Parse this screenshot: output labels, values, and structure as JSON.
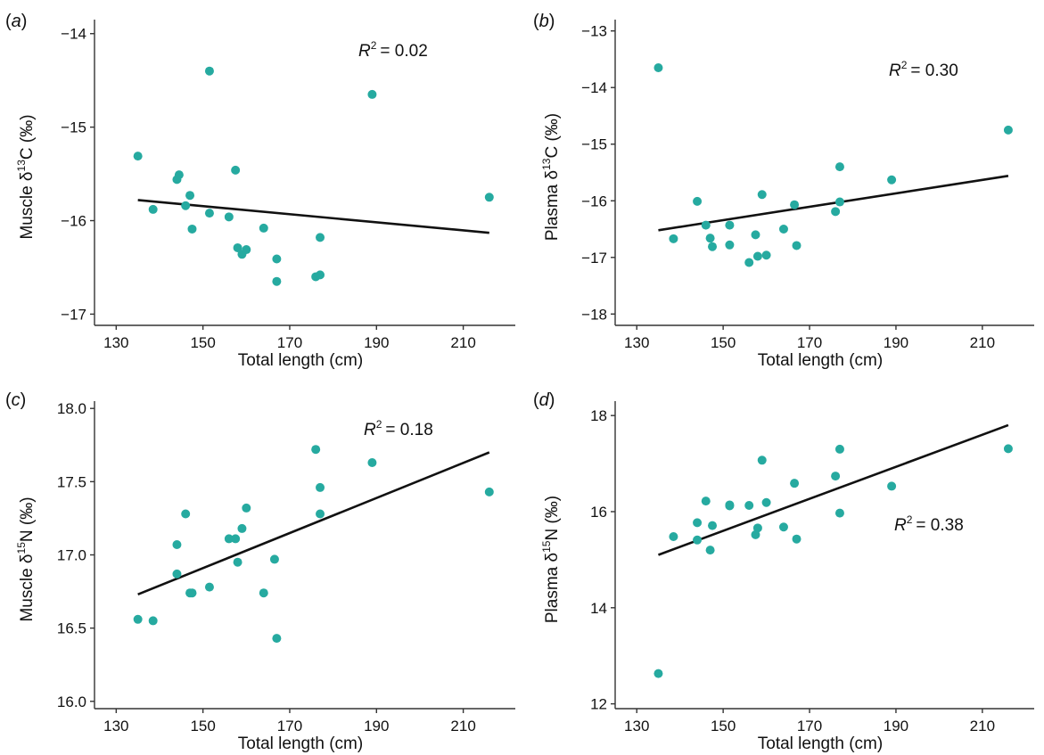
{
  "figure": {
    "point_color": "#26aaa0",
    "line_color": "#111111",
    "axis_color": "#333333"
  },
  "chart_data": [
    {
      "type": "scatter",
      "panel_label": "(a)",
      "title": "",
      "xlabel": "Total length (cm)",
      "ylabel_prefix": "Muscle δ",
      "ylabel_sup": "13",
      "ylabel_suffix": "C (‰)",
      "xlim": [
        125,
        222
      ],
      "ylim": [
        -17.12,
        -13.85
      ],
      "xticks": [
        130,
        150,
        170,
        190,
        210
      ],
      "xtick_labels": [
        "130",
        "150",
        "170",
        "190",
        "210"
      ],
      "yticks": [
        -17,
        -16,
        -15,
        -14
      ],
      "ytick_labels": [
        "−17",
        "−16",
        "−15",
        "−14"
      ],
      "r2_text": "= 0.02",
      "r2_position": "top-right",
      "fit": {
        "x": [
          135,
          216
        ],
        "y": [
          -15.78,
          -16.13
        ]
      },
      "points": {
        "x": [
          135,
          138.5,
          144,
          144.5,
          146,
          147,
          147.5,
          151.5,
          151.5,
          156,
          157.5,
          158,
          159,
          160,
          164,
          167,
          167,
          176,
          177,
          177,
          189,
          216
        ],
        "y": [
          -15.31,
          -15.88,
          -15.56,
          -15.51,
          -15.84,
          -15.73,
          -16.09,
          -15.92,
          -14.4,
          -15.96,
          -15.46,
          -16.29,
          -16.36,
          -16.31,
          -16.08,
          -16.41,
          -16.65,
          -16.6,
          -16.58,
          -16.18,
          -14.65,
          -15.75
        ]
      }
    },
    {
      "type": "scatter",
      "panel_label": "(b)",
      "title": "",
      "xlabel": "Total length (cm)",
      "ylabel_prefix": "Plasma δ",
      "ylabel_sup": "13",
      "ylabel_suffix": "C (‰)",
      "xlim": [
        125,
        222
      ],
      "ylim": [
        -18.2,
        -12.8
      ],
      "xticks": [
        130,
        150,
        170,
        190,
        210
      ],
      "xtick_labels": [
        "130",
        "150",
        "170",
        "190",
        "210"
      ],
      "yticks": [
        -18,
        -17,
        -16,
        -15,
        -14,
        -13
      ],
      "ytick_labels": [
        "−18",
        "−17",
        "−16",
        "−15",
        "−14",
        "−13"
      ],
      "r2_text": "= 0.30",
      "r2_position": "top-right",
      "fit": {
        "x": [
          135,
          216
        ],
        "y": [
          -16.52,
          -15.56
        ]
      },
      "points": {
        "x": [
          135,
          138.5,
          144,
          146,
          147,
          147.5,
          151.5,
          151.5,
          156,
          157.5,
          158,
          159,
          160,
          164,
          166.5,
          167,
          176,
          177,
          177,
          189,
          216
        ],
        "y": [
          -13.65,
          -16.67,
          -16.01,
          -16.43,
          -16.66,
          -16.81,
          -16.43,
          -16.78,
          -17.09,
          -16.6,
          -16.98,
          -15.89,
          -16.96,
          -16.5,
          -16.07,
          -16.79,
          -16.19,
          -16.02,
          -15.4,
          -15.63,
          -14.75
        ]
      }
    },
    {
      "type": "scatter",
      "panel_label": "(c)",
      "title": "",
      "xlabel": "Total length (cm)",
      "ylabel_prefix": "Muscle δ",
      "ylabel_sup": "15",
      "ylabel_suffix": "N (‰)",
      "xlim": [
        125,
        222
      ],
      "ylim": [
        15.95,
        18.05
      ],
      "xticks": [
        130,
        150,
        170,
        190,
        210
      ],
      "xtick_labels": [
        "130",
        "150",
        "170",
        "190",
        "210"
      ],
      "yticks": [
        16.0,
        16.5,
        17.0,
        17.5,
        18.0
      ],
      "ytick_labels": [
        "16.0",
        "16.5",
        "17.0",
        "17.5",
        "18.0"
      ],
      "r2_text": "= 0.18",
      "r2_position": "top-right",
      "fit": {
        "x": [
          135,
          216
        ],
        "y": [
          16.73,
          17.7
        ]
      },
      "points": {
        "x": [
          135,
          138.5,
          144,
          144,
          146,
          147,
          147.5,
          151.5,
          156,
          157.5,
          158,
          159,
          160,
          164,
          166.5,
          167,
          176,
          177,
          177,
          189,
          216
        ],
        "y": [
          16.56,
          16.55,
          16.87,
          17.07,
          17.28,
          16.74,
          16.74,
          16.78,
          17.11,
          17.11,
          16.95,
          17.18,
          17.32,
          16.74,
          16.97,
          16.43,
          17.72,
          17.46,
          17.28,
          17.63,
          17.43
        ]
      }
    },
    {
      "type": "scatter",
      "panel_label": "(d)",
      "title": "",
      "xlabel": "Total length (cm)",
      "ylabel_prefix": "Plasma δ",
      "ylabel_sup": "15",
      "ylabel_suffix": "N (‰)",
      "xlim": [
        125,
        222
      ],
      "ylim": [
        11.9,
        18.3
      ],
      "xticks": [
        130,
        150,
        170,
        190,
        210
      ],
      "xtick_labels": [
        "130",
        "150",
        "170",
        "190",
        "210"
      ],
      "yticks": [
        12,
        14,
        16,
        18
      ],
      "ytick_labels": [
        "12",
        "14",
        "16",
        "18"
      ],
      "r2_text": "= 0.38",
      "r2_position": "middle-right",
      "fit": {
        "x": [
          135,
          216
        ],
        "y": [
          15.1,
          17.8
        ]
      },
      "points": {
        "x": [
          135,
          138.5,
          144,
          144,
          146,
          147,
          147.5,
          151.5,
          151.5,
          156,
          157.5,
          158,
          159,
          160,
          164,
          166.5,
          167,
          176,
          177,
          177,
          189,
          216
        ],
        "y": [
          12.63,
          15.48,
          15.77,
          15.41,
          16.22,
          15.2,
          15.71,
          16.12,
          16.14,
          16.13,
          15.52,
          15.66,
          17.07,
          16.19,
          15.68,
          16.59,
          15.43,
          16.74,
          17.3,
          15.97,
          16.53,
          17.31
        ]
      }
    }
  ]
}
